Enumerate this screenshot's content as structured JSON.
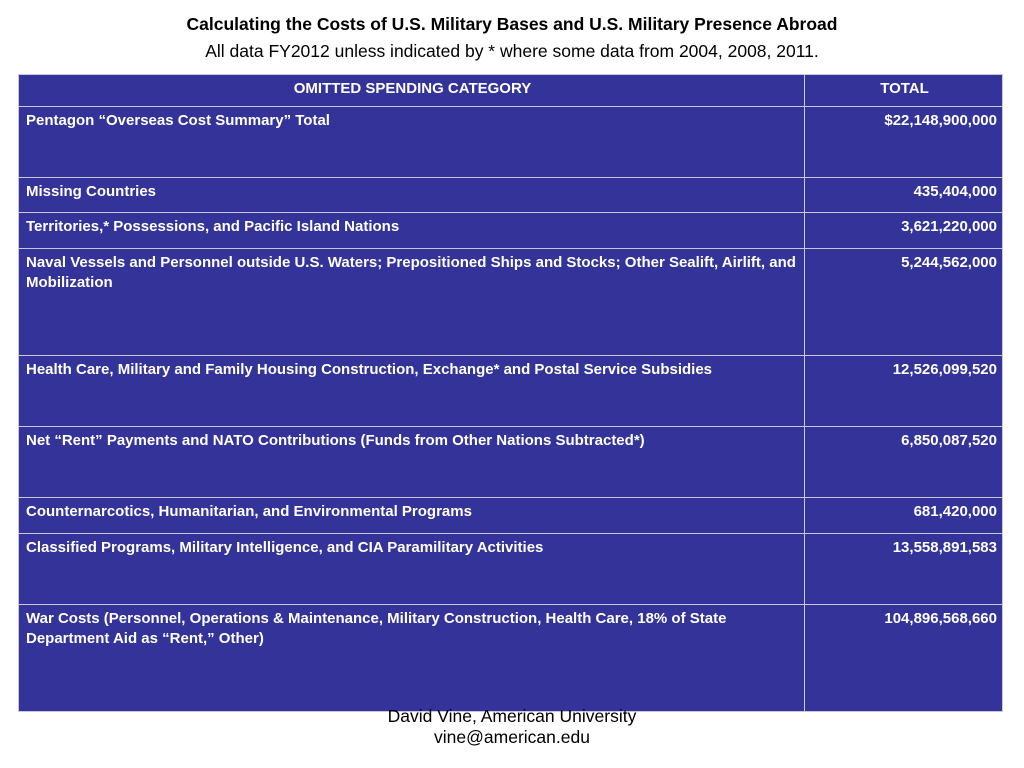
{
  "title": "Calculating the Costs of U.S. Military Bases and U.S. Military Presence Abroad",
  "subtitle": "All data FY2012 unless indicated by * where some data from 2004, 2008, 2011.",
  "table": {
    "headers": [
      "OMITTED SPENDING CATEGORY",
      "TOTAL"
    ],
    "rows": [
      {
        "category": "Pentagon “Overseas Cost Summary” Total",
        "total": "$22,148,900,000"
      },
      {
        "category": "Missing Countries",
        "total": "435,404,000"
      },
      {
        "category": "Territories,* Possessions, and Pacific Island Nations",
        "total": "3,621,220,000"
      },
      {
        "category": "Naval Vessels and Personnel outside U.S. Waters; Prepositioned Ships and Stocks; Other Sealift, Airlift, and Mobilization",
        "total": "5,244,562,000"
      },
      {
        "category": "Health Care, Military and Family Housing Construction, Exchange* and Postal Service Subsidies",
        "total": "12,526,099,520"
      },
      {
        "category": "Net “Rent” Payments and NATO Contributions (Funds from Other Nations Subtracted*)",
        "total": "6,850,087,520"
      },
      {
        "category": "Counternarcotics, Humanitarian, and Environmental Programs",
        "total": "681,420,000"
      },
      {
        "category": "Classified Programs, Military Intelligence, and CIA Paramilitary Activities",
        "total": "13,558,891,583"
      },
      {
        "category": "War Costs (Personnel, Operations & Maintenance, Military Construction, Health Care, 18% of State Department Aid as “Rent,” Other)",
        "total": "104,896,568,660"
      }
    ]
  },
  "footer": {
    "line1": "David Vine, American University",
    "line2": "vine@american.edu"
  },
  "colors": {
    "table_bg": "#333399",
    "table_text": "#ffffff"
  }
}
